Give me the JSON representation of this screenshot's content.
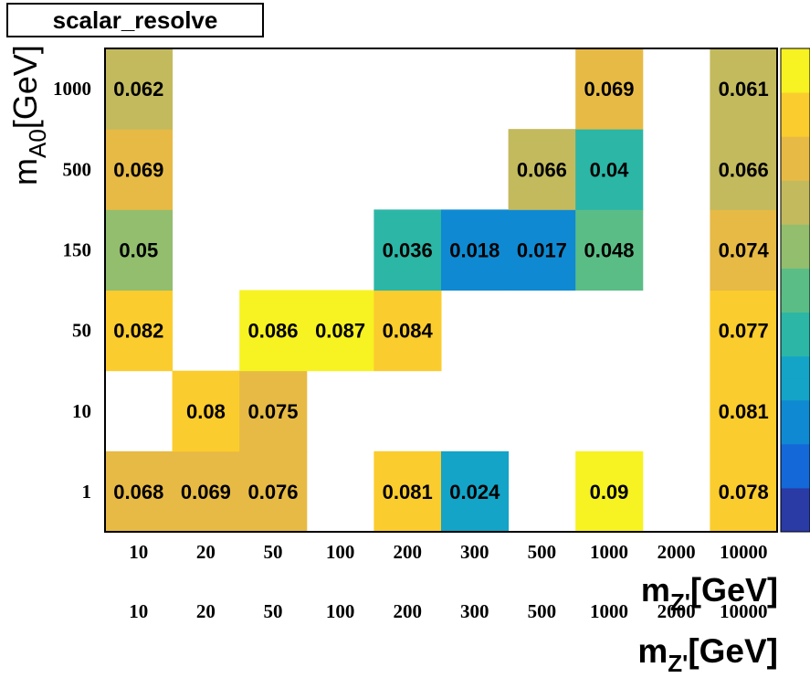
{
  "title": "scalar_resolve",
  "chart_data": {
    "type": "heatmap",
    "title": "scalar_resolve",
    "xlabel": "m_Z'[GeV]",
    "ylabel": "m_A0[GeV]",
    "x_categories": [
      "10",
      "20",
      "50",
      "100",
      "200",
      "300",
      "500",
      "1000",
      "2000",
      "10000"
    ],
    "y_categories": [
      "1",
      "10",
      "50",
      "150",
      "500",
      "1000"
    ],
    "cells": [
      {
        "x": "10",
        "y": "1",
        "value": 0.068,
        "label": "0.068"
      },
      {
        "x": "20",
        "y": "1",
        "value": 0.069,
        "label": "0.069"
      },
      {
        "x": "50",
        "y": "1",
        "value": 0.076,
        "label": "0.076"
      },
      {
        "x": "200",
        "y": "1",
        "value": 0.081,
        "label": "0.081"
      },
      {
        "x": "300",
        "y": "1",
        "value": 0.024,
        "label": "0.024"
      },
      {
        "x": "1000",
        "y": "1",
        "value": 0.09,
        "label": "0.09"
      },
      {
        "x": "10000",
        "y": "1",
        "value": 0.078,
        "label": "0.078"
      },
      {
        "x": "20",
        "y": "10",
        "value": 0.08,
        "label": "0.08"
      },
      {
        "x": "50",
        "y": "10",
        "value": 0.075,
        "label": "0.075"
      },
      {
        "x": "10000",
        "y": "10",
        "value": 0.081,
        "label": "0.081"
      },
      {
        "x": "10",
        "y": "50",
        "value": 0.082,
        "label": "0.082"
      },
      {
        "x": "50",
        "y": "50",
        "value": 0.086,
        "label": "0.086"
      },
      {
        "x": "100",
        "y": "50",
        "value": 0.087,
        "label": "0.087"
      },
      {
        "x": "200",
        "y": "50",
        "value": 0.084,
        "label": "0.084"
      },
      {
        "x": "10000",
        "y": "50",
        "value": 0.077,
        "label": "0.077"
      },
      {
        "x": "10",
        "y": "150",
        "value": 0.05,
        "label": "0.05"
      },
      {
        "x": "200",
        "y": "150",
        "value": 0.036,
        "label": "0.036"
      },
      {
        "x": "300",
        "y": "150",
        "value": 0.018,
        "label": "0.018"
      },
      {
        "x": "500",
        "y": "150",
        "value": 0.017,
        "label": "0.017"
      },
      {
        "x": "1000",
        "y": "150",
        "value": 0.048,
        "label": "0.048"
      },
      {
        "x": "10000",
        "y": "150",
        "value": 0.074,
        "label": "0.074"
      },
      {
        "x": "10",
        "y": "500",
        "value": 0.069,
        "label": "0.069"
      },
      {
        "x": "500",
        "y": "500",
        "value": 0.066,
        "label": "0.066"
      },
      {
        "x": "1000",
        "y": "500",
        "value": 0.04,
        "label": "0.04"
      },
      {
        "x": "10000",
        "y": "500",
        "value": 0.066,
        "label": "0.066"
      },
      {
        "x": "10",
        "y": "1000",
        "value": 0.062,
        "label": "0.062"
      },
      {
        "x": "1000",
        "y": "1000",
        "value": 0.069,
        "label": "0.069"
      },
      {
        "x": "10000",
        "y": "1000",
        "value": 0.061,
        "label": "0.061"
      }
    ],
    "zlim": [
      0.0,
      0.09
    ],
    "colormap": [
      "#2a3ba6",
      "#1568d8",
      "#0f8ad2",
      "#13a4c8",
      "#2cb6a6",
      "#5bbd86",
      "#92be6e",
      "#c3ba5e",
      "#e6ba45",
      "#fbcc2e",
      "#f7f222"
    ],
    "grid": false,
    "legend": "colorbar-right"
  }
}
